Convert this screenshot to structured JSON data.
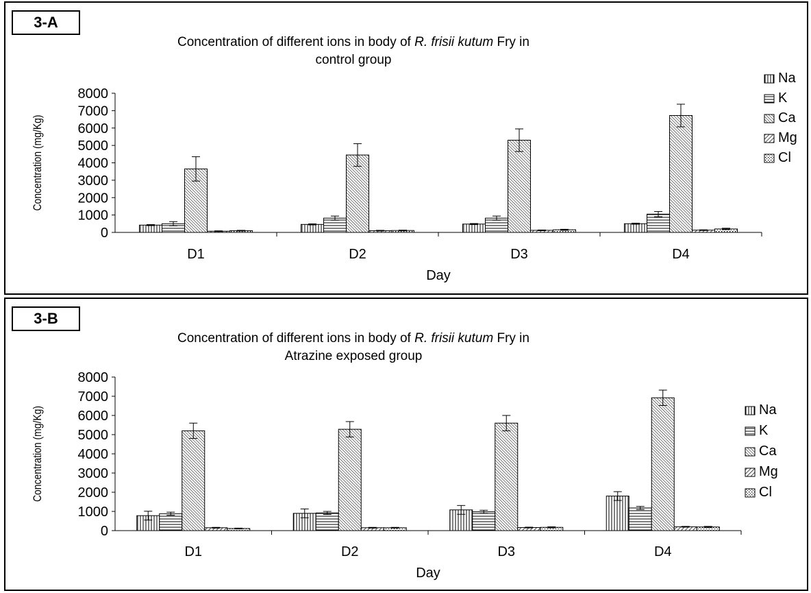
{
  "chart_data": [
    {
      "type": "bar",
      "panel_label": "3-A",
      "title_prefix": "Concentration of different ions in body of ",
      "title_italic": "R. frisii kutum",
      "title_suffix": " Fry in",
      "title_line2": "control group",
      "xlabel": "Day",
      "ylabel": "Concentration (mg/Kg)",
      "ylim": [
        0,
        8000
      ],
      "yticks": [
        "0",
        "1000",
        "2000",
        "3000",
        "4000",
        "5000",
        "6000",
        "7000",
        "8000"
      ],
      "categories": [
        "D1",
        "D2",
        "D3",
        "D4"
      ],
      "legend_position": "right",
      "series": [
        {
          "name": "Na",
          "pattern": "vertical",
          "values": [
            420,
            460,
            480,
            500
          ],
          "errors": [
            30,
            30,
            30,
            30
          ]
        },
        {
          "name": "K",
          "pattern": "horizontal",
          "values": [
            500,
            820,
            820,
            1050
          ],
          "errors": [
            120,
            120,
            120,
            150
          ]
        },
        {
          "name": "Ca",
          "pattern": "diag-fine",
          "values": [
            3650,
            4450,
            5300,
            6720
          ],
          "errors": [
            700,
            650,
            650,
            650
          ]
        },
        {
          "name": "Mg",
          "pattern": "diag-coarse",
          "values": [
            70,
            100,
            120,
            130
          ],
          "errors": [
            20,
            20,
            20,
            20
          ]
        },
        {
          "name": "Cl",
          "pattern": "dots",
          "values": [
            100,
            110,
            150,
            200
          ],
          "errors": [
            20,
            20,
            30,
            40
          ]
        }
      ]
    },
    {
      "type": "bar",
      "panel_label": "3-B",
      "title_prefix": "Concentration of different ions in body of ",
      "title_italic": "R. frisii kutum",
      "title_suffix": " Fry in",
      "title_line2": "Atrazine exposed group",
      "xlabel": "Day",
      "ylabel": "Concentration (mg/Kg)",
      "ylim": [
        0,
        8000
      ],
      "yticks": [
        "0",
        "1000",
        "2000",
        "3000",
        "4000",
        "5000",
        "6000",
        "7000",
        "8000"
      ],
      "categories": [
        "D1",
        "D2",
        "D3",
        "D4"
      ],
      "legend_position": "right",
      "series": [
        {
          "name": "Na",
          "pattern": "vertical",
          "values": [
            780,
            900,
            1080,
            1800
          ],
          "errors": [
            230,
            230,
            230,
            230
          ]
        },
        {
          "name": "K",
          "pattern": "horizontal",
          "values": [
            880,
            920,
            980,
            1180
          ],
          "errors": [
            80,
            80,
            80,
            80
          ]
        },
        {
          "name": "Ca",
          "pattern": "diag-fine",
          "values": [
            5200,
            5280,
            5600,
            6920
          ],
          "errors": [
            400,
            400,
            400,
            400
          ]
        },
        {
          "name": "Mg",
          "pattern": "diag-coarse",
          "values": [
            150,
            150,
            160,
            200
          ],
          "errors": [
            20,
            20,
            20,
            20
          ]
        },
        {
          "name": "Cl",
          "pattern": "dots",
          "values": [
            110,
            150,
            170,
            190
          ],
          "errors": [
            20,
            20,
            30,
            30
          ]
        }
      ]
    }
  ]
}
